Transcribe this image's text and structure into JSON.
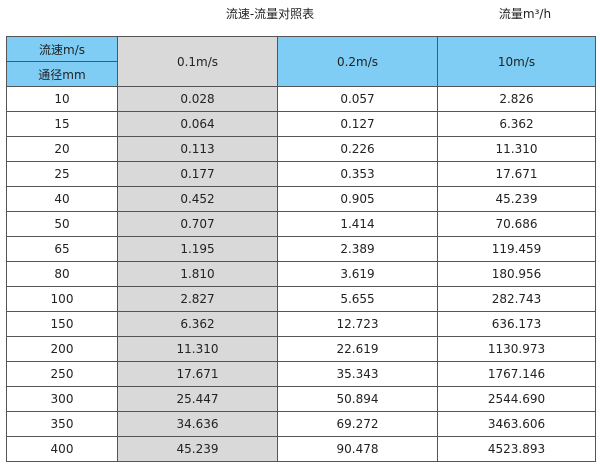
{
  "title": "流速-流量对照表",
  "unit_note": "流量m³/h",
  "header": {
    "velocity_label": "流速m/s",
    "diameter_label": "通径mm",
    "columns": [
      "0.1m/s",
      "0.2m/s",
      "10m/s"
    ]
  },
  "rows": [
    [
      "10",
      "0.028",
      "0.057",
      "2.826"
    ],
    [
      "15",
      "0.064",
      "0.127",
      "6.362"
    ],
    [
      "20",
      "0.113",
      "0.226",
      "11.310"
    ],
    [
      "25",
      "0.177",
      "0.353",
      "17.671"
    ],
    [
      "40",
      "0.452",
      "0.905",
      "45.239"
    ],
    [
      "50",
      "0.707",
      "1.414",
      "70.686"
    ],
    [
      "65",
      "1.195",
      "2.389",
      "119.459"
    ],
    [
      "80",
      "1.810",
      "3.619",
      "180.956"
    ],
    [
      "100",
      "2.827",
      "5.655",
      "282.743"
    ],
    [
      "150",
      "6.362",
      "12.723",
      "636.173"
    ],
    [
      "200",
      "11.310",
      "22.619",
      "1130.973"
    ],
    [
      "250",
      "17.671",
      "35.343",
      "1767.146"
    ],
    [
      "300",
      "25.447",
      "50.894",
      "2544.690"
    ],
    [
      "350",
      "34.636",
      "69.272",
      "3463.606"
    ],
    [
      "400",
      "45.239",
      "90.478",
      "4523.893"
    ]
  ]
}
